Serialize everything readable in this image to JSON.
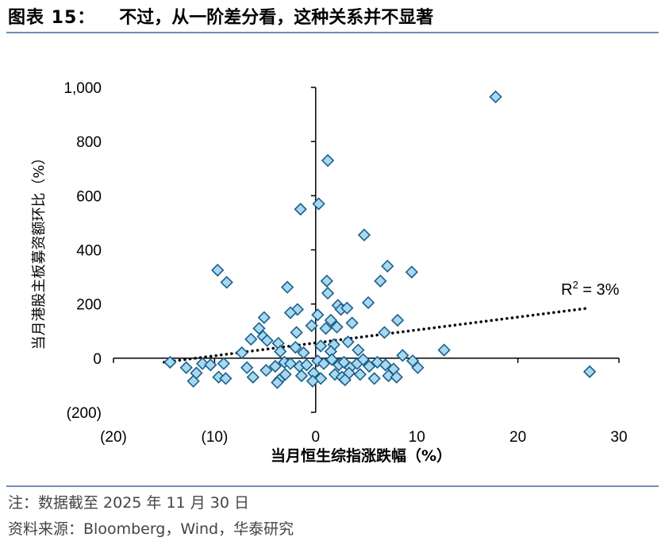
{
  "header": {
    "figure_label": "图表 15：",
    "title": "不过，从一阶差分看，这种关系并不显著"
  },
  "footer": {
    "note": "注：数据截至 2025 年 11 月 30 日",
    "source": "资料来源：Bloomberg，Wind，华泰研究"
  },
  "chart_data": {
    "type": "scatter",
    "xlabel": "当月恒生综指涨跌幅（%）",
    "ylabel": "当月港股主板募资额环比（%）",
    "xlim": [
      -20,
      30
    ],
    "ylim": [
      -200,
      1000
    ],
    "x_ticks": [
      -20,
      -10,
      0,
      10,
      20,
      30
    ],
    "x_tick_labels": [
      "(20)",
      "(10)",
      "0",
      "10",
      "20",
      "30"
    ],
    "y_ticks": [
      -200,
      0,
      200,
      400,
      600,
      800,
      1000
    ],
    "y_tick_labels": [
      "(200)",
      "0",
      "200",
      "400",
      "600",
      "800",
      "1,000"
    ],
    "grid": false,
    "marker": "diamond",
    "marker_fill": "#a8d8f0",
    "marker_edge": "#1a5f8a",
    "trendline": {
      "style": "dotted",
      "color": "#000000",
      "points": [
        [
          -15,
          -15
        ],
        [
          27,
          185
        ]
      ]
    },
    "annotation": {
      "text_main": "R",
      "text_sup": "2",
      "text_rest": " = 3%"
    },
    "points": [
      [
        17.8,
        965
      ],
      [
        1.2,
        730
      ],
      [
        -1.5,
        550
      ],
      [
        0.3,
        570
      ],
      [
        4.8,
        455
      ],
      [
        -9.7,
        325
      ],
      [
        -8.8,
        280
      ],
      [
        7.1,
        340
      ],
      [
        9.5,
        318
      ],
      [
        6.4,
        285
      ],
      [
        1.1,
        285
      ],
      [
        -2.8,
        262
      ],
      [
        1.2,
        240
      ],
      [
        5.2,
        205
      ],
      [
        2.2,
        195
      ],
      [
        2.5,
        180
      ],
      [
        3.1,
        185
      ],
      [
        -1.8,
        180
      ],
      [
        -2.5,
        168
      ],
      [
        -5.1,
        150
      ],
      [
        0.2,
        160
      ],
      [
        1.5,
        140
      ],
      [
        3.6,
        130
      ],
      [
        8.1,
        140
      ],
      [
        -0.4,
        120
      ],
      [
        -5.6,
        110
      ],
      [
        1.0,
        110
      ],
      [
        2.1,
        115
      ],
      [
        -1.9,
        95
      ],
      [
        6.8,
        95
      ],
      [
        -5.2,
        80
      ],
      [
        -6.4,
        70
      ],
      [
        -4.8,
        65
      ],
      [
        -3.7,
        55
      ],
      [
        -2.0,
        40
      ],
      [
        0.5,
        45
      ],
      [
        1.8,
        50
      ],
      [
        3.2,
        60
      ],
      [
        12.7,
        30
      ],
      [
        -7.3,
        20
      ],
      [
        -3.5,
        25
      ],
      [
        -1.2,
        20
      ],
      [
        1.5,
        25
      ],
      [
        4.2,
        30
      ],
      [
        8.6,
        10
      ],
      [
        -14.4,
        -15
      ],
      [
        -12.8,
        -35
      ],
      [
        -11.2,
        -20
      ],
      [
        -10.4,
        -25
      ],
      [
        -9.1,
        -20
      ],
      [
        -6.8,
        -35
      ],
      [
        -4.9,
        -45
      ],
      [
        -4.0,
        -30
      ],
      [
        -3.1,
        -15
      ],
      [
        -2.5,
        -20
      ],
      [
        -1.6,
        -30
      ],
      [
        -0.9,
        -25
      ],
      [
        0.2,
        -10
      ],
      [
        0.8,
        -20
      ],
      [
        1.6,
        -5
      ],
      [
        2.3,
        -25
      ],
      [
        2.8,
        -15
      ],
      [
        3.4,
        -35
      ],
      [
        4.1,
        -20
      ],
      [
        4.7,
        -5
      ],
      [
        5.3,
        -30
      ],
      [
        6.1,
        -15
      ],
      [
        6.9,
        -25
      ],
      [
        7.7,
        -40
      ],
      [
        9.6,
        -10
      ],
      [
        10.1,
        -35
      ],
      [
        -11.8,
        -55
      ],
      [
        -9.6,
        -70
      ],
      [
        -8.9,
        -75
      ],
      [
        -6.2,
        -70
      ],
      [
        -3.6,
        -80
      ],
      [
        -3.0,
        -60
      ],
      [
        -1.4,
        -65
      ],
      [
        -0.2,
        -55
      ],
      [
        0.5,
        -75
      ],
      [
        1.9,
        -60
      ],
      [
        2.6,
        -70
      ],
      [
        3.3,
        -55
      ],
      [
        4.4,
        -60
      ],
      [
        5.8,
        -75
      ],
      [
        7.2,
        -65
      ],
      [
        8.0,
        -70
      ],
      [
        27.1,
        -50
      ],
      [
        -12.1,
        -85
      ],
      [
        -3.8,
        -90
      ],
      [
        -0.3,
        -85
      ],
      [
        2.9,
        -80
      ]
    ]
  }
}
